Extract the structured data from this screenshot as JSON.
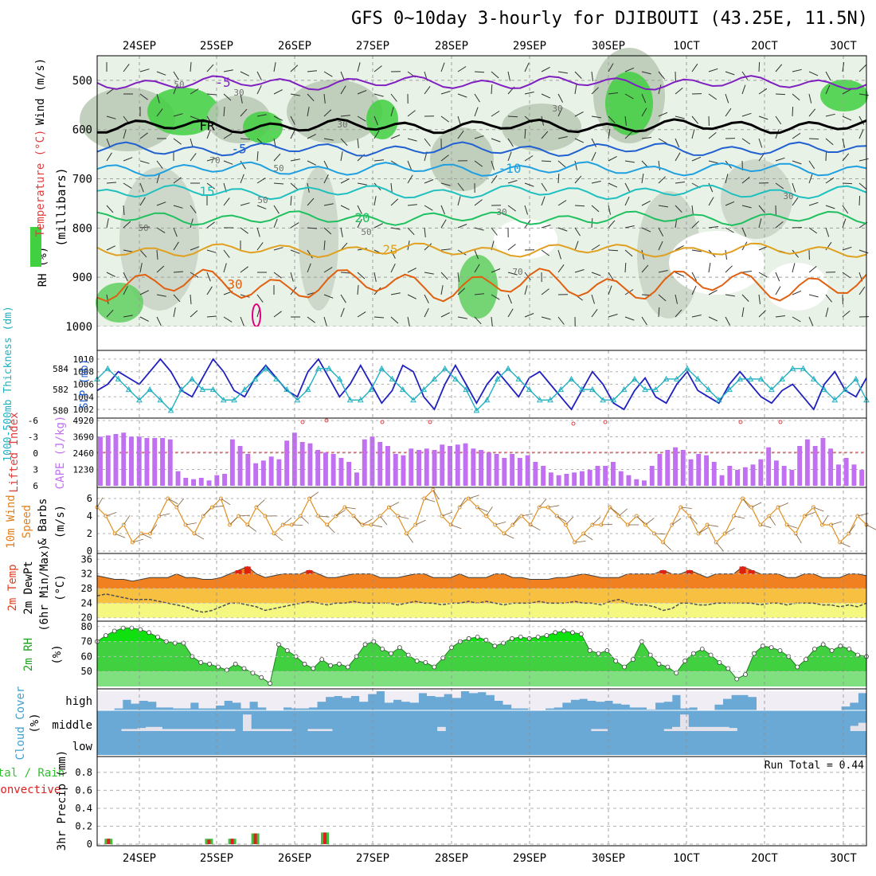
{
  "title": "GFS 0~10day 3-hourly for DJIBOUTI (43.25E, 11.5N)",
  "days": [
    "24SEP",
    "25SEP",
    "26SEP",
    "27SEP",
    "28SEP",
    "29SEP",
    "30SEP",
    "1OCT",
    "2OCT",
    "3OCT"
  ],
  "colors": {
    "purple": "#8020c0",
    "navy": "#2020c0",
    "cyan": "#20b0c0",
    "blue": "#2060d0",
    "sky": "#20a0e0",
    "teal": "#20c0c0",
    "green": "#20c060",
    "orange": "#e0a020",
    "dkorange": "#e06010",
    "magenta": "#e00080",
    "cape": "#c070f0",
    "li": "#e04040",
    "wind": "#e09020",
    "barb": "#806040",
    "cloud": "#6aa8d6",
    "cloudbg": "#f0eef4",
    "rh": "#20c020",
    "precip_total": "#40c040",
    "precip_conv": "#e02020"
  },
  "chart_data": [
    {
      "type": "heatmap",
      "name": "upper-air",
      "ylabel_rh": "RH (%)",
      "ylabel_temp": "Temperature (°C)",
      "ylabel_wind": "Wind (m/s)",
      "ylabel_p": "(millibars)",
      "y_ticks": [
        500,
        600,
        700,
        800,
        900,
        1000
      ],
      "ylim": [
        1000,
        450
      ],
      "isotherms": [
        {
          "label": "-5",
          "level": 505,
          "color": "#8020c0"
        },
        {
          "label": "FR",
          "level": 593,
          "color": "#000000"
        },
        {
          "label": "-5",
          "level": 640,
          "color": "#2060d0"
        },
        {
          "label": "-10",
          "level": 680,
          "color": "#20a0e0"
        },
        {
          "label": "15",
          "level": 727,
          "color": "#20c0c0"
        },
        {
          "label": "20",
          "level": 780,
          "color": "#20c060"
        },
        {
          "label": "25",
          "level": 845,
          "color": "#e0a020"
        },
        {
          "label": "30",
          "level": 915,
          "color": "#e06010"
        }
      ],
      "contour_labels": [
        "50",
        "30",
        "70",
        "50",
        "30",
        "50",
        "70",
        "30",
        "50",
        "30",
        "50",
        "30"
      ]
    },
    {
      "type": "line",
      "name": "slp-thickness",
      "ylabel_left": "1000-500mb Thickness (dm)",
      "ylabel_right": "SLP (mb)",
      "left_ticks": [
        580,
        582,
        584
      ],
      "right_ticks": [
        1002,
        1004,
        1006,
        1008,
        1010
      ],
      "slp": [
        1005,
        1006,
        1008,
        1007,
        1006,
        1008,
        1010,
        1008,
        1005,
        1004,
        1007,
        1010,
        1008,
        1005,
        1004,
        1007,
        1009,
        1007,
        1005,
        1004,
        1008,
        1010,
        1007,
        1004,
        1006,
        1009,
        1006,
        1003,
        1005,
        1009,
        1008,
        1004,
        1002,
        1006,
        1009,
        1006,
        1003,
        1006,
        1008,
        1006,
        1004,
        1007,
        1008,
        1006,
        1004,
        1002,
        1005,
        1008,
        1006,
        1003,
        1002,
        1005,
        1007,
        1004,
        1003,
        1006,
        1008,
        1005,
        1004,
        1003,
        1006,
        1008,
        1006,
        1004,
        1003,
        1005,
        1006,
        1004,
        1002,
        1006,
        1008,
        1005,
        1004,
        1007
      ],
      "thickness": [
        583,
        584,
        583,
        582,
        581,
        582,
        581,
        580,
        582,
        583,
        582,
        582,
        581,
        581,
        582,
        583,
        584,
        583,
        582,
        581,
        582,
        584,
        584,
        583,
        581,
        581,
        582,
        584,
        583,
        582,
        581,
        582,
        583,
        584,
        583,
        582,
        580,
        581,
        583,
        584,
        583,
        582,
        581,
        581,
        582,
        583,
        582,
        582,
        581,
        581,
        582,
        583,
        582,
        582,
        583,
        583,
        584,
        583,
        582,
        581,
        582,
        583,
        583,
        583,
        582,
        583,
        584,
        584,
        583,
        582,
        581,
        582,
        583,
        581
      ]
    },
    {
      "type": "bar",
      "name": "cape-li",
      "ylabel_left": "Lifted Index",
      "ylabel_right": "CAPE (J/kg)",
      "left_ticks": [
        "-6",
        "-3",
        "0",
        "3",
        "6"
      ],
      "right_ticks": [
        1230,
        2460,
        3690,
        4920
      ],
      "cape": [
        3700,
        3800,
        3900,
        4000,
        3700,
        3700,
        3600,
        3600,
        3600,
        3500,
        1100,
        600,
        500,
        600,
        400,
        800,
        900,
        3500,
        3000,
        2400,
        1700,
        1900,
        2200,
        2000,
        3400,
        4000,
        3300,
        3200,
        2700,
        2500,
        2400,
        2100,
        1800,
        1000,
        3500,
        3700,
        3300,
        3000,
        2400,
        2300,
        2800,
        2700,
        2800,
        2700,
        3100,
        3000,
        3100,
        3200,
        2800,
        2700,
        2500,
        2400,
        2100,
        2400,
        2100,
        2300,
        1800,
        1500,
        1000,
        800,
        900,
        1000,
        1100,
        1200,
        1500,
        1500,
        1800,
        1100,
        800,
        500,
        400,
        1500,
        2400,
        2700,
        2900,
        2700,
        2000,
        2400,
        2300,
        1800,
        800,
        1500,
        1200,
        1400,
        1600,
        2000,
        2900,
        1900,
        1500,
        1200,
        3000,
        3500,
        3000,
        3600,
        2800,
        1600,
        2100,
        1600,
        1200
      ]
    },
    {
      "type": "line",
      "name": "wind10m",
      "ylabel": "10m Wind Speed & Barbs (m/s)",
      "y_ticks": [
        0,
        2,
        4,
        6
      ],
      "speed": [
        5,
        4,
        2,
        3,
        1,
        2,
        2,
        4,
        6,
        5,
        3,
        2,
        4,
        5,
        6,
        3,
        4,
        3,
        5,
        4,
        2,
        3,
        3,
        4,
        6,
        4,
        3,
        4,
        5,
        4,
        3,
        3,
        4,
        5,
        4,
        2,
        3,
        6,
        7,
        4,
        3,
        5,
        6,
        5,
        4,
        3,
        2,
        3,
        4,
        3,
        5,
        5,
        4,
        3,
        1,
        2,
        3,
        3,
        5,
        4,
        3,
        4,
        3,
        2,
        1,
        3,
        5,
        4,
        2,
        3,
        1,
        2,
        4,
        6,
        5,
        3,
        4,
        5,
        3,
        2,
        4,
        5,
        3,
        3,
        1,
        2,
        4,
        3
      ]
    },
    {
      "type": "area",
      "name": "temp2m",
      "ylabel": "2m Temp 2m DewPt (6hr Min/Max) (°C)",
      "y_ticks": [
        20,
        24,
        28,
        32,
        36
      ],
      "temp": [
        31.5,
        31,
        30.5,
        30.5,
        30,
        30.5,
        31,
        31,
        31,
        32,
        31,
        31,
        30.5,
        30.5,
        31,
        32,
        33,
        34,
        32,
        31,
        31.5,
        32,
        32,
        32,
        33,
        32,
        31,
        31,
        31.5,
        32,
        32,
        32,
        31,
        31,
        31,
        31.5,
        32,
        32,
        31,
        31,
        31,
        32,
        31,
        31,
        31,
        32,
        32,
        31,
        31,
        30.5,
        30.5,
        30.5,
        31,
        31,
        31.5,
        32,
        31.5,
        31,
        31,
        31,
        32,
        32,
        32,
        32,
        33,
        32,
        32,
        33,
        32,
        31,
        32,
        32,
        32,
        34,
        33,
        32,
        32,
        32,
        31,
        31,
        32,
        32,
        31,
        31,
        31,
        32,
        32,
        31.5
      ],
      "dewpt": [
        26,
        26.5,
        26,
        25.5,
        25,
        25,
        25,
        24.5,
        24,
        23.5,
        23,
        22,
        21.5,
        22,
        23,
        24,
        24,
        23.5,
        23,
        22,
        22.5,
        23,
        23.5,
        24,
        24.5,
        24,
        23.5,
        24,
        24,
        24.5,
        24,
        24,
        24,
        24,
        23.5,
        24,
        24.5,
        24,
        24,
        23.5,
        24,
        24,
        24.5,
        24,
        24.5,
        24,
        23.5,
        24,
        24,
        24,
        24.5,
        24,
        24,
        24,
        24.5,
        24,
        24,
        23.5,
        24.5,
        25,
        24,
        23.5,
        23.5,
        23,
        22,
        22.5,
        24,
        24,
        23.5,
        23.5,
        24,
        24,
        24,
        24,
        24,
        23.5,
        24,
        24,
        23.5,
        24,
        24,
        24,
        23.5,
        23.5,
        23,
        23.5,
        23,
        24
      ]
    },
    {
      "type": "area",
      "name": "rh2m",
      "ylabel": "2m RH (%)",
      "y_ticks": [
        50,
        60,
        70,
        80
      ],
      "rh": [
        70,
        74,
        77,
        79,
        79,
        78,
        76,
        73,
        70,
        69,
        69,
        60,
        56,
        55,
        53,
        51,
        55,
        52,
        49,
        46,
        42,
        68,
        64,
        60,
        55,
        52,
        58,
        54,
        55,
        53,
        60,
        68,
        70,
        65,
        62,
        66,
        61,
        57,
        56,
        53,
        59,
        66,
        70,
        72,
        73,
        71,
        67,
        69,
        72,
        73,
        72,
        73,
        74,
        76,
        77,
        76,
        75,
        64,
        62,
        64,
        57,
        53,
        58,
        70,
        61,
        55,
        53,
        49,
        57,
        62,
        65,
        61,
        56,
        52,
        45,
        48,
        62,
        67,
        66,
        64,
        60,
        53,
        58,
        65,
        68,
        64,
        67,
        65,
        61,
        60
      ]
    },
    {
      "type": "area",
      "name": "cloud",
      "ylabel": "Cloud Cover (%)",
      "rows": [
        "high",
        "middle",
        "low"
      ],
      "high": [
        0,
        0,
        10,
        55,
        35,
        50,
        45,
        15,
        15,
        10,
        10,
        40,
        10,
        10,
        25,
        50,
        40,
        10,
        45,
        15,
        0,
        0,
        15,
        10,
        10,
        15,
        45,
        70,
        75,
        65,
        75,
        45,
        85,
        100,
        40,
        55,
        45,
        40,
        90,
        75,
        70,
        85,
        65,
        100,
        90,
        95,
        80,
        50,
        30,
        10,
        10,
        0,
        0,
        10,
        15,
        40,
        55,
        60,
        50,
        45,
        50,
        35,
        30,
        15,
        15,
        5,
        40,
        45,
        80,
        10,
        15,
        0,
        0,
        30,
        60,
        80,
        80,
        70,
        0,
        0,
        0,
        0,
        0,
        0,
        0,
        0,
        0,
        0,
        20,
        40,
        90
      ],
      "middle": [
        100,
        100,
        100,
        90,
        90,
        85,
        80,
        80,
        90,
        90,
        90,
        90,
        90,
        90,
        90,
        90,
        90,
        100,
        20,
        90,
        90,
        90,
        90,
        90,
        100,
        100,
        90,
        90,
        90,
        100,
        100,
        100,
        100,
        100,
        100,
        100,
        100,
        100,
        100,
        100,
        100,
        100,
        80,
        100,
        100,
        100,
        100,
        100,
        100,
        100,
        100,
        100,
        100,
        100,
        100,
        100,
        100,
        100,
        100,
        100,
        100,
        90,
        90,
        100,
        100,
        100,
        100,
        100,
        100,
        100,
        90,
        80,
        20,
        80,
        80,
        80,
        80,
        80,
        85,
        100,
        100,
        100,
        100,
        100,
        100,
        100,
        100,
        100,
        100,
        100,
        100,
        100,
        100,
        75,
        60
      ]
    },
    {
      "type": "bar",
      "name": "precip",
      "ylabel_left": "Total / Rain",
      "ylabel_conv": "Convective",
      "ylabel": "3hr Precip (mm)",
      "y_ticks": [
        0,
        0.2,
        0.4,
        0.6,
        0.8
      ],
      "run_total_label": "Run Total = 0.44",
      "total": [
        0.06,
        0.06,
        0.06,
        0.12,
        0.13
      ],
      "conv": [
        0.06,
        0.05,
        0.06,
        0.12,
        0.13
      ],
      "day_index": [
        0.4,
        1.7,
        2.0,
        2.3,
        3.2
      ]
    }
  ]
}
